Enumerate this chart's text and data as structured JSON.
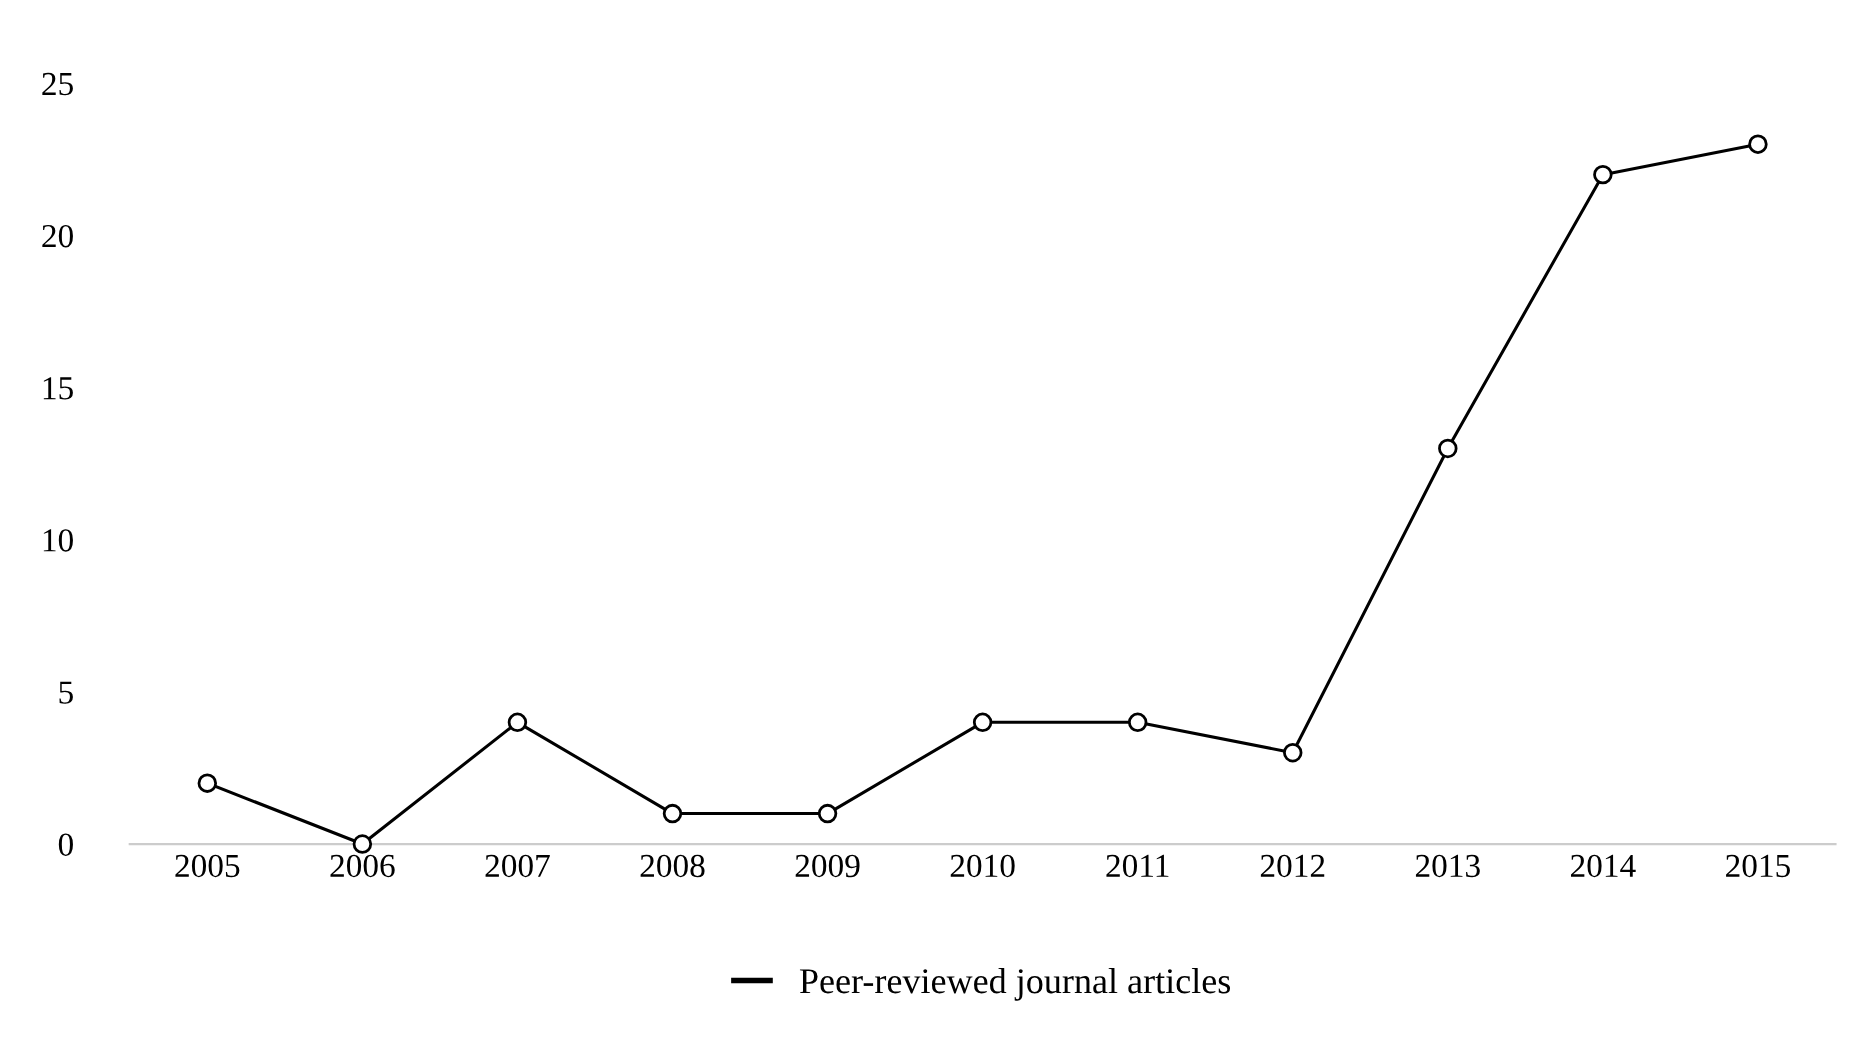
{
  "chart_data": {
    "type": "line",
    "categories": [
      "2005",
      "2006",
      "2007",
      "2008",
      "2009",
      "2010",
      "2011",
      "2012",
      "2013",
      "2014",
      "2015"
    ],
    "series": [
      {
        "name": "Peer-reviewed journal articles",
        "color": "#000000",
        "values": [
          2,
          0,
          4,
          1,
          1,
          4,
          4,
          3,
          13,
          22,
          23
        ]
      }
    ],
    "ylim": [
      0,
      25
    ],
    "yticks": [
      0,
      5,
      10,
      15,
      20,
      25
    ],
    "grid": false,
    "legend": "bottom",
    "marker": "circle",
    "line_style": "solid"
  }
}
